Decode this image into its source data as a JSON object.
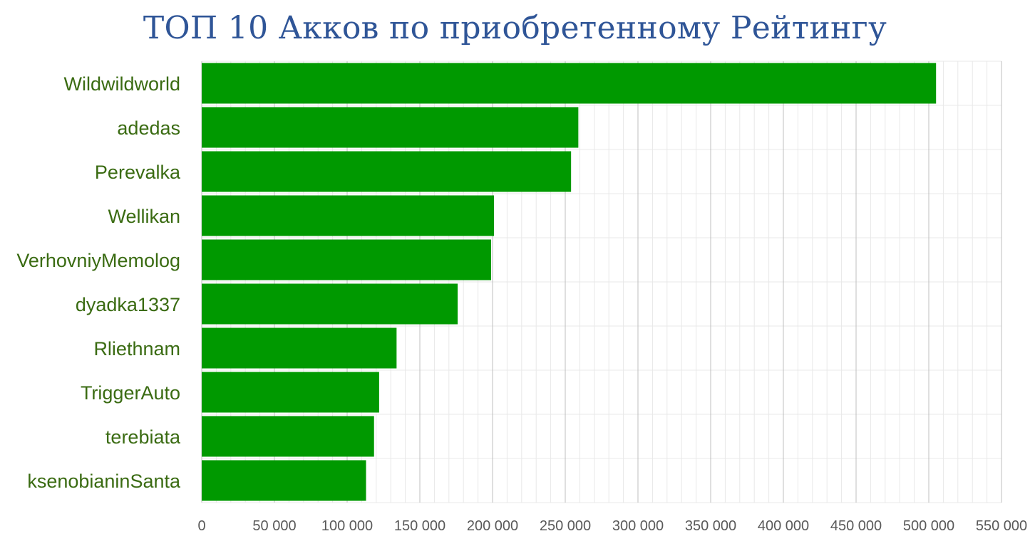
{
  "chart_data": {
    "type": "bar",
    "orientation": "horizontal",
    "title": "ТОП 10 Акков по приобретенному Рейтингу",
    "xlabel": "",
    "ylabel": "",
    "categories": [
      "Wildwildworld",
      "adedas",
      "Perevalka",
      "Wellikan",
      "VerhovniyMemolog",
      "dyadka1337",
      "Rliethnam",
      "TriggerAuto",
      "terebiata",
      "ksenobianinSanta"
    ],
    "values": [
      505000,
      259000,
      254000,
      201000,
      199000,
      176000,
      134000,
      122000,
      118500,
      113000
    ],
    "xlim": [
      0,
      550000
    ],
    "x_ticks": [
      0,
      50000,
      100000,
      150000,
      200000,
      250000,
      300000,
      350000,
      400000,
      450000,
      500000,
      550000
    ],
    "x_tick_labels": [
      "0",
      "50 000",
      "100 000",
      "150 000",
      "200 000",
      "250 000",
      "300 000",
      "350 000",
      "400 000",
      "450 000",
      "500 000",
      "550 000"
    ],
    "grid": true,
    "legend": "none",
    "colors": {
      "bar": "#009900",
      "title": "#2f5597",
      "category_text": "#3a6b12",
      "tick_text": "#595959",
      "major_grid": "#bfbfbf",
      "minor_grid": "#e8e8e8"
    }
  }
}
